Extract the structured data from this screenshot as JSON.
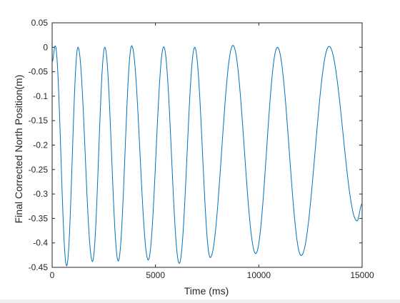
{
  "chart_data": {
    "type": "line",
    "title": "",
    "xlabel": "Time (ms)",
    "ylabel": "Final Corrected North Position(m)",
    "xlim": [
      0,
      15000
    ],
    "ylim": [
      -0.45,
      0.05
    ],
    "xticks": [
      0,
      5000,
      10000,
      15000
    ],
    "xtick_labels": [
      "0",
      "5000",
      "10000",
      "15000"
    ],
    "yticks": [
      0.05,
      0,
      -0.05,
      -0.1,
      -0.15,
      -0.2,
      -0.25,
      -0.3,
      -0.35,
      -0.4,
      -0.45
    ],
    "ytick_labels": [
      "0.05",
      "0",
      "-0.05",
      "-0.1",
      "-0.15",
      "-0.2",
      "-0.25",
      "-0.3",
      "-0.35",
      "-0.4",
      "-0.45"
    ],
    "grid": false,
    "legend": "none",
    "line_color": "#0072bd",
    "series": [
      {
        "x": [
          0,
          150,
          700,
          1250,
          1950,
          2550,
          3200,
          3850,
          4650,
          5400,
          6150,
          6900,
          7650,
          8750,
          9850,
          10900,
          12050,
          13400,
          14750,
          15000
        ],
        "values": [
          -0.03,
          0.003,
          -0.447,
          0.0,
          -0.438,
          0.0,
          -0.437,
          0.003,
          -0.435,
          0.001,
          -0.442,
          0.0,
          -0.43,
          0.004,
          -0.422,
          0.0,
          -0.426,
          0.002,
          -0.355,
          -0.32
        ]
      }
    ]
  }
}
